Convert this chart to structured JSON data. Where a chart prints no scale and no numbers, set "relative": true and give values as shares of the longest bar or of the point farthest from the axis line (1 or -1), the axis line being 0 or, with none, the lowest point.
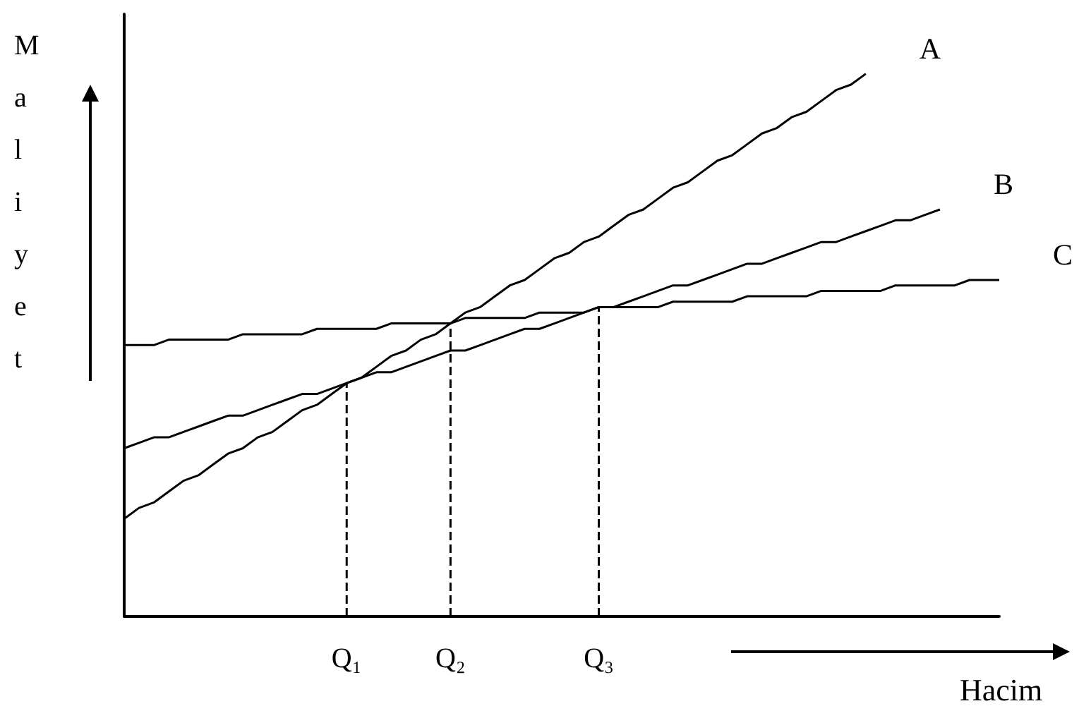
{
  "chart_data": {
    "type": "line",
    "relative": true,
    "xlabel": "Hacim",
    "ylabel": "Maliyet",
    "categories": [
      null,
      null,
      null,
      null,
      null,
      null,
      null,
      null,
      null,
      null,
      null,
      null,
      null,
      null,
      null,
      "Q₁",
      null,
      null,
      null,
      null,
      null,
      null,
      "Q₂",
      null,
      null,
      null,
      null,
      null,
      null,
      null,
      null,
      null,
      "Q₃",
      null,
      null,
      null,
      null,
      null,
      null,
      null,
      null,
      null,
      null,
      null,
      null,
      null,
      null,
      null,
      null,
      null,
      null,
      null,
      null,
      null,
      null,
      null,
      null,
      null,
      null,
      null
    ],
    "series": [
      {
        "name": "A",
        "color": "#000000",
        "values": [
          0.18,
          0.2,
          0.21,
          0.23,
          0.25,
          0.26,
          0.28,
          0.3,
          0.31,
          0.33,
          0.34,
          0.36,
          0.38,
          0.39,
          0.41,
          0.43,
          0.44,
          0.46,
          0.48,
          0.49,
          0.51,
          0.52,
          0.54,
          0.56,
          0.57,
          0.59,
          0.61,
          0.62,
          0.64,
          0.66,
          0.67,
          0.69,
          0.7,
          0.72,
          0.74,
          0.75,
          0.77,
          0.79,
          0.8,
          0.82,
          0.84,
          0.85,
          0.87,
          0.89,
          0.9,
          0.92,
          0.93,
          0.95,
          0.97,
          0.98,
          1.0,
          null,
          null,
          null,
          null,
          null,
          null,
          null,
          null,
          null
        ]
      },
      {
        "name": "B",
        "color": "#000000",
        "values": [
          0.31,
          0.32,
          0.33,
          0.33,
          0.34,
          0.35,
          0.36,
          0.37,
          0.37,
          0.38,
          0.39,
          0.4,
          0.41,
          0.41,
          0.42,
          0.43,
          0.44,
          0.45,
          0.45,
          0.46,
          0.47,
          0.48,
          0.49,
          0.49,
          0.5,
          0.51,
          0.52,
          0.53,
          0.53,
          0.54,
          0.55,
          0.56,
          0.57,
          0.57,
          0.58,
          0.59,
          0.6,
          0.61,
          0.61,
          0.62,
          0.63,
          0.64,
          0.65,
          0.65,
          0.66,
          0.67,
          0.68,
          0.69,
          0.69,
          0.7,
          0.71,
          0.72,
          0.73,
          0.73,
          0.74,
          0.75,
          null,
          null,
          null,
          null
        ]
      },
      {
        "name": "C",
        "color": "#000000",
        "values": [
          0.5,
          0.5,
          0.5,
          0.51,
          0.51,
          0.51,
          0.51,
          0.51,
          0.52,
          0.52,
          0.52,
          0.52,
          0.52,
          0.53,
          0.53,
          0.53,
          0.53,
          0.53,
          0.54,
          0.54,
          0.54,
          0.54,
          0.54,
          0.55,
          0.55,
          0.55,
          0.55,
          0.55,
          0.56,
          0.56,
          0.56,
          0.56,
          0.57,
          0.57,
          0.57,
          0.57,
          0.57,
          0.58,
          0.58,
          0.58,
          0.58,
          0.58,
          0.59,
          0.59,
          0.59,
          0.59,
          0.59,
          0.6,
          0.6,
          0.6,
          0.6,
          0.6,
          0.61,
          0.61,
          0.61,
          0.61,
          0.61,
          0.62,
          0.62,
          0.62
        ]
      },
      {
        "color": "#000000",
        "line_style": "dashed",
        "x": [
          "Q₁",
          "Q₁"
        ],
        "values": [
          0,
          0.43
        ]
      },
      {
        "color": "#000000",
        "line_style": "dashed",
        "x": [
          "Q₂",
          "Q₂"
        ],
        "values": [
          0,
          0.54
        ]
      },
      {
        "color": "#000000",
        "line_style": "dashed",
        "x": [
          "Q₃",
          "Q₃"
        ],
        "values": [
          0,
          0.57
        ]
      }
    ],
    "legend": false,
    "grid": false,
    "marker": "none",
    "line_style": "solid"
  }
}
